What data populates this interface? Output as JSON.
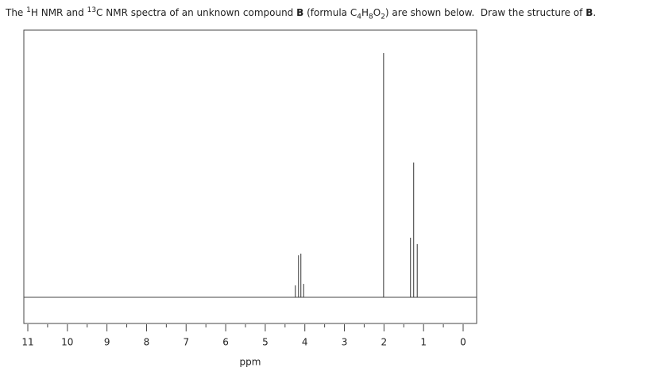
{
  "chart_data": {
    "type": "spectrum",
    "title": [
      "The ",
      "1",
      "H NMR and ",
      "13",
      "C NMR spectra of an unknown compound ",
      "B",
      " (formula C",
      "4",
      "H",
      "8",
      "O",
      "2",
      ") are shown below.  Draw the structure of ",
      "B",
      "."
    ],
    "xlabel": "ppm",
    "x": [
      4.24,
      4.16,
      4.1,
      4.03,
      2.01,
      1.33,
      1.25,
      1.16
    ],
    "values": [
      4.9,
      17.2,
      17.9,
      5.5,
      100,
      24.4,
      55.2,
      21.8
    ],
    "color": "#333333",
    "xlim": [
      11,
      0
    ],
    "xticks": [
      11,
      10,
      9,
      8,
      7,
      6,
      5,
      4,
      3,
      2,
      1,
      0
    ],
    "minor_xticks": [
      10.5,
      9.5,
      8.5,
      7.5,
      6.5,
      5.5,
      4.5,
      3.5,
      2.5,
      1.5,
      0.5
    ],
    "ylim": [
      -10.7,
      109.4
    ]
  }
}
